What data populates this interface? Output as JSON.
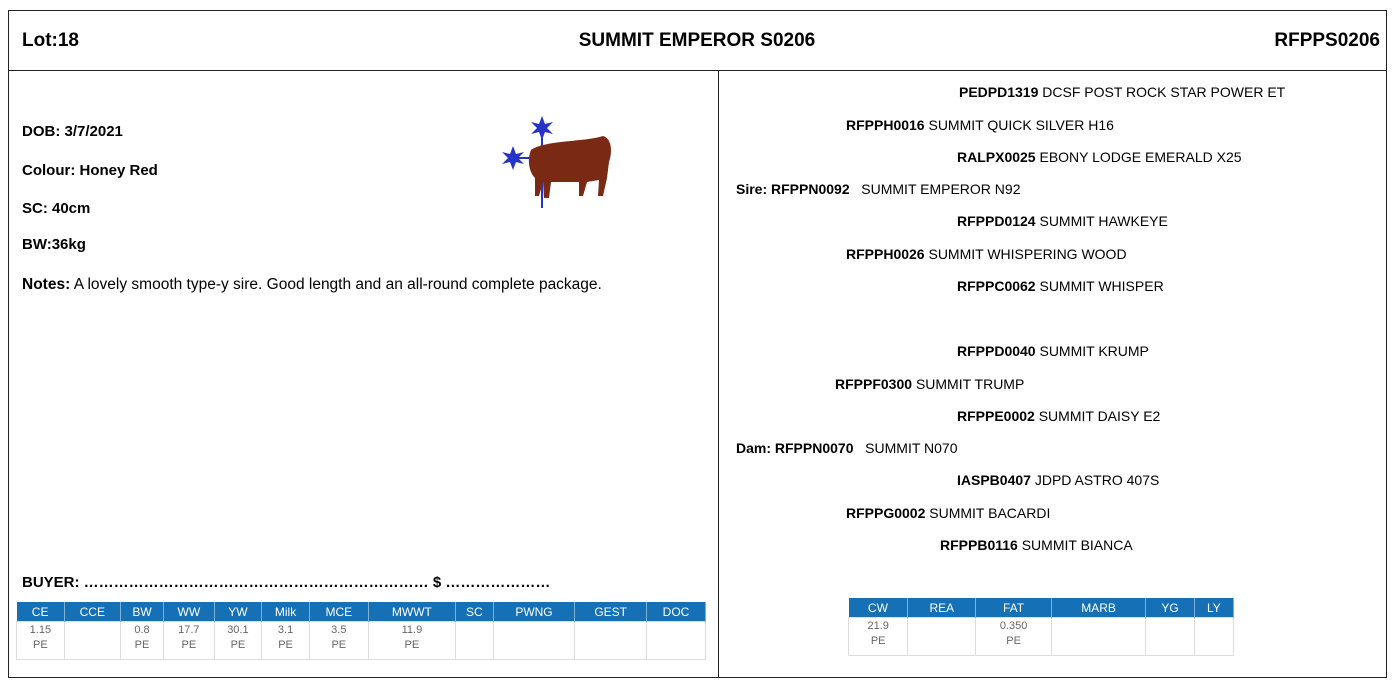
{
  "header": {
    "lot": "Lot:18",
    "name": "SUMMIT EMPEROR S0206",
    "id": "RFPPS0206"
  },
  "details": {
    "dob": "DOB: 3/7/2021",
    "colour": "Colour: Honey Red",
    "sc": "SC: 40cm",
    "bw": "BW:36kg",
    "notes_label": "Notes:",
    "notes": "A lovely smooth type-y sire. Good length and an all-round complete package.",
    "buyer": "BUYER: …………………………………………………………… $ …………………"
  },
  "pedigree": [
    {
      "id": "PEDPD1319",
      "name": "DCSF POST ROCK STAR POWER ET"
    },
    {
      "id": "RFPPH0016",
      "name": "SUMMIT QUICK SILVER H16"
    },
    {
      "id": "RALPX0025",
      "name": "EBONY LODGE EMERALD X25"
    },
    {
      "id": "Sire: RFPPN0092",
      "name": "SUMMIT EMPEROR N92"
    },
    {
      "id": "RFPPD0124",
      "name": "SUMMIT HAWKEYE"
    },
    {
      "id": "RFPPH0026",
      "name": "SUMMIT WHISPERING WOOD"
    },
    {
      "id": "RFPPC0062",
      "name": "SUMMIT WHISPER"
    },
    {
      "id": "RFPPD0040",
      "name": "SUMMIT KRUMP"
    },
    {
      "id": "RFPPF0300",
      "name": "SUMMIT TRUMP"
    },
    {
      "id": "RFPPE0002",
      "name": "SUMMIT DAISY E2"
    },
    {
      "id": "Dam: RFPPN0070",
      "name": "SUMMIT N070"
    },
    {
      "id": "IASPB0407",
      "name": "JDPD ASTRO 407S"
    },
    {
      "id": "RFPPG0002",
      "name": "SUMMIT BACARDI"
    },
    {
      "id": "RFPPB0116",
      "name": "SUMMIT BIANCA"
    }
  ],
  "ebv_table": {
    "headers": [
      "CE",
      "CCE",
      "BW",
      "WW",
      "YW",
      "Milk",
      "MCE",
      "MWWT",
      "SC",
      "PWNG",
      "GEST",
      "DOC"
    ],
    "values": [
      "1.15",
      null,
      "0.8",
      "17.7",
      "30.1",
      "3.1",
      "3.5",
      "11.9",
      null,
      null,
      null,
      null
    ],
    "accuracy": [
      "PE",
      null,
      "PE",
      "PE",
      "PE",
      "PE",
      "PE",
      "PE",
      null,
      null,
      null,
      null
    ]
  },
  "carcase_table": {
    "headers": [
      "CW",
      "REA",
      "FAT",
      "MARB",
      "YG",
      "LY"
    ],
    "values": [
      "21.9",
      null,
      "0.350",
      null,
      null,
      null
    ],
    "accuracy": [
      "PE",
      null,
      "PE",
      null,
      null,
      null
    ]
  }
}
